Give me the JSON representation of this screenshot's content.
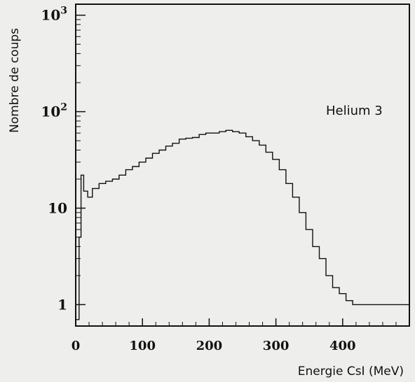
{
  "chart_data": {
    "type": "line",
    "step": true,
    "ylog": true,
    "xlim": [
      0,
      500
    ],
    "ylim": [
      0.6,
      1300
    ],
    "xlabel": "Energie CsI (MeV)",
    "ylabel": "Nombre de coups",
    "annotation": "Helium 3",
    "x_ticks": [
      {
        "value": 0,
        "label": "0"
      },
      {
        "value": 100,
        "label": "100"
      },
      {
        "value": 200,
        "label": "200"
      },
      {
        "value": 300,
        "label": "300"
      },
      {
        "value": 400,
        "label": "400"
      }
    ],
    "y_ticks": [
      {
        "value": 1,
        "base": "1",
        "exp": ""
      },
      {
        "value": 10,
        "base": "10",
        "exp": ""
      },
      {
        "value": 100,
        "base": "10",
        "exp": "2"
      },
      {
        "value": 1000,
        "base": "10",
        "exp": "3"
      }
    ],
    "grid": false,
    "series": [
      {
        "values": [
          [
            0,
            0.7
          ],
          [
            5,
            5
          ],
          [
            8,
            22
          ],
          [
            12,
            15
          ],
          [
            18,
            13
          ],
          [
            25,
            16
          ],
          [
            35,
            18
          ],
          [
            45,
            19
          ],
          [
            55,
            20
          ],
          [
            65,
            22
          ],
          [
            75,
            25
          ],
          [
            85,
            27
          ],
          [
            95,
            30
          ],
          [
            105,
            33
          ],
          [
            115,
            37
          ],
          [
            125,
            40
          ],
          [
            135,
            44
          ],
          [
            145,
            47
          ],
          [
            155,
            52
          ],
          [
            165,
            53
          ],
          [
            175,
            54
          ],
          [
            185,
            58
          ],
          [
            195,
            60
          ],
          [
            205,
            60
          ],
          [
            215,
            62
          ],
          [
            225,
            64
          ],
          [
            235,
            62
          ],
          [
            245,
            60
          ],
          [
            255,
            55
          ],
          [
            265,
            50
          ],
          [
            275,
            45
          ],
          [
            285,
            38
          ],
          [
            295,
            32
          ],
          [
            305,
            25
          ],
          [
            315,
            18
          ],
          [
            325,
            13
          ],
          [
            335,
            9
          ],
          [
            345,
            6
          ],
          [
            355,
            4
          ],
          [
            365,
            3
          ],
          [
            375,
            2
          ],
          [
            385,
            1.5
          ],
          [
            395,
            1.3
          ],
          [
            405,
            1.1
          ],
          [
            415,
            1
          ],
          [
            430,
            1
          ],
          [
            445,
            1
          ],
          [
            460,
            1
          ],
          [
            475,
            1
          ],
          [
            490,
            1
          ]
        ]
      }
    ]
  }
}
